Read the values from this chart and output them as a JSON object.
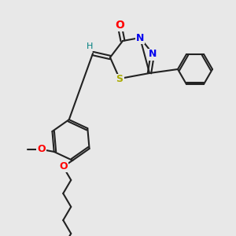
{
  "bg_color": "#e8e8e8",
  "bond_color": "#222222",
  "atom_colors": {
    "O": "#ff0000",
    "N": "#0000ee",
    "S": "#aaaa00",
    "H_label": "#008080",
    "C": "#222222"
  },
  "figsize": [
    3.0,
    3.0
  ],
  "dpi": 100
}
